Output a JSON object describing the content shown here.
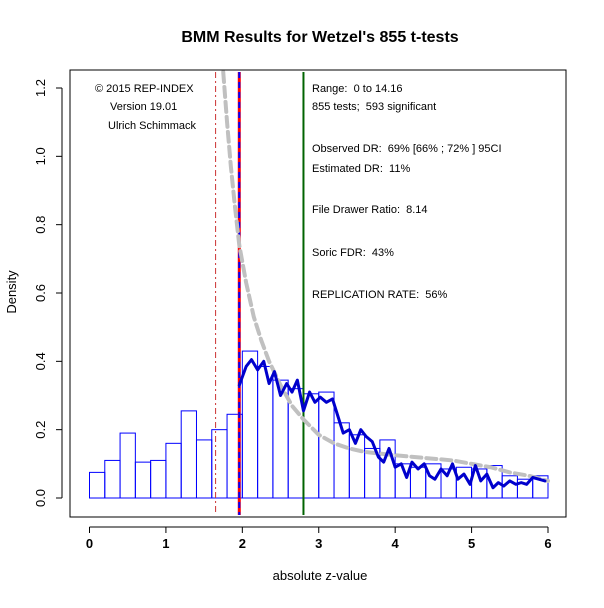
{
  "chart_data": {
    "type": "bar",
    "title": "BMM Results for Wetzel's 855 t-tests",
    "xlabel": "absolute z-value",
    "ylabel": "Density",
    "xlim": [
      0,
      6
    ],
    "ylim": [
      0,
      1.2
    ],
    "x_ticks": [
      "0",
      "1",
      "2",
      "3",
      "4",
      "5",
      "6"
    ],
    "y_ticks": [
      "0.0",
      "0.2",
      "0.4",
      "0.6",
      "0.8",
      "1.0",
      "1.2"
    ],
    "bin_width": 0.2,
    "histogram": {
      "bin_starts": [
        0.0,
        0.2,
        0.4,
        0.6,
        0.8,
        1.0,
        1.2,
        1.4,
        1.6,
        1.8,
        2.0,
        2.2,
        2.4,
        2.6,
        2.8,
        3.0,
        3.2,
        3.4,
        3.6,
        3.8,
        4.0,
        4.2,
        4.4,
        4.6,
        4.8,
        5.0,
        5.2,
        5.4,
        5.6,
        5.8
      ],
      "density": [
        0.075,
        0.11,
        0.19,
        0.105,
        0.11,
        0.16,
        0.255,
        0.17,
        0.2,
        0.245,
        0.43,
        0.385,
        0.345,
        0.32,
        0.305,
        0.31,
        0.22,
        0.185,
        0.145,
        0.17,
        0.1,
        0.09,
        0.1,
        0.085,
        0.09,
        0.085,
        0.095,
        0.065,
        0.055,
        0.065
      ],
      "color": "#0000ff"
    },
    "series": [
      {
        "style": "solid-blue-thick",
        "color": "#0000cc",
        "x": [
          1.96,
          2.05,
          2.12,
          2.2,
          2.28,
          2.35,
          2.42,
          2.5,
          2.58,
          2.65,
          2.72,
          2.8,
          2.88,
          2.95,
          3.02,
          3.1,
          3.18,
          3.25,
          3.32,
          3.4,
          3.48,
          3.55,
          3.62,
          3.7,
          3.78,
          3.85,
          3.92,
          4.0,
          4.08,
          4.15,
          4.22,
          4.3,
          4.38,
          4.45,
          4.52,
          4.6,
          4.68,
          4.75,
          4.82,
          4.9,
          4.98,
          5.05,
          5.12,
          5.2,
          5.28,
          5.35,
          5.42,
          5.5,
          5.58,
          5.65,
          5.72,
          5.8,
          5.88,
          5.96
        ],
        "y": [
          0.33,
          0.385,
          0.405,
          0.375,
          0.4,
          0.335,
          0.37,
          0.3,
          0.335,
          0.31,
          0.345,
          0.255,
          0.31,
          0.28,
          0.295,
          0.28,
          0.29,
          0.24,
          0.19,
          0.2,
          0.16,
          0.2,
          0.18,
          0.165,
          0.12,
          0.105,
          0.145,
          0.09,
          0.1,
          0.06,
          0.105,
          0.085,
          0.1,
          0.065,
          0.055,
          0.085,
          0.065,
          0.1,
          0.055,
          0.07,
          0.04,
          0.095,
          0.05,
          0.07,
          0.03,
          0.045,
          0.035,
          0.05,
          0.04,
          0.045,
          0.04,
          0.06,
          0.055,
          0.05
        ]
      },
      {
        "style": "dashed-gray-thick",
        "color": "#c0c0c0",
        "x": [
          1.75,
          1.8,
          1.85,
          1.9,
          1.96,
          2.05,
          2.15,
          2.25,
          2.35,
          2.5,
          2.65,
          2.8,
          3.0,
          3.2,
          3.4,
          3.6,
          3.8,
          4.0,
          4.25,
          4.5,
          4.75,
          5.0,
          5.25,
          5.5,
          5.75,
          6.0
        ],
        "y": [
          1.25,
          1.1,
          0.97,
          0.86,
          0.74,
          0.63,
          0.53,
          0.46,
          0.4,
          0.33,
          0.27,
          0.23,
          0.185,
          0.16,
          0.145,
          0.135,
          0.13,
          0.125,
          0.12,
          0.115,
          0.11,
          0.1,
          0.09,
          0.075,
          0.065,
          0.05
        ]
      }
    ],
    "vertical_lines": [
      {
        "x": 1.65,
        "color": "#cc3333",
        "style": "dashdot"
      },
      {
        "x": 1.96,
        "color": "#ff0000",
        "style": "solid"
      },
      {
        "x": 1.96,
        "color": "#0000ff",
        "style": "dashed"
      },
      {
        "x": 2.8,
        "color": "#006400",
        "style": "solid"
      }
    ],
    "annotations_left": [
      "© 2015 REP-INDEX",
      "Version 19.01",
      "Ulrich Schimmack"
    ],
    "annotations_right": [
      "Range:  0 to 14.16",
      "855 tests;  593 significant",
      "Observed DR:  69% [66% ; 72% ] 95CI",
      "Estimated DR:  11%",
      "File Drawer Ratio:  8.14",
      "Soric FDR:  43%",
      "REPLICATION RATE:  56%"
    ]
  }
}
